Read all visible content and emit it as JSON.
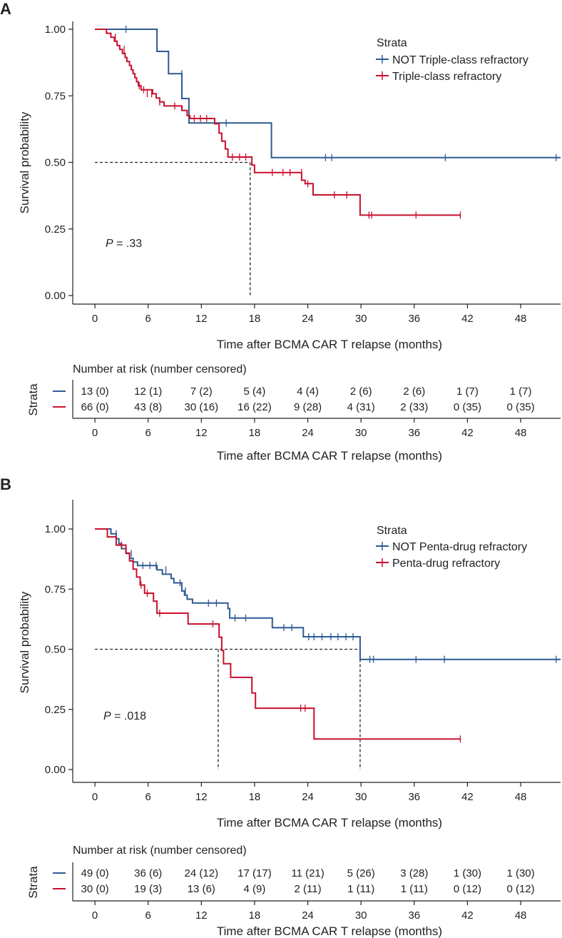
{
  "panels": [
    {
      "letter": "A",
      "pvalue_prefix": "P",
      "pvalue_text": " = .33",
      "legend_title": "Strata",
      "risk_title": "Number at risk (number censored)",
      "risk_strata_label": "Strata",
      "risk_xlabel": "Time after BCMA CAR T relapse (months)",
      "risk_table": [
        [
          "13 (0)",
          "12 (1)",
          "7 (2)",
          "5 (4)",
          "4 (4)",
          "2 (6)",
          "2 (6)",
          "1 (7)",
          "1 (7)"
        ],
        [
          "66 (0)",
          "43 (8)",
          "30 (16)",
          "16 (22)",
          "9 (28)",
          "4 (31)",
          "2 (33)",
          "0 (35)",
          "0 (35)"
        ]
      ],
      "median_lines": [
        {
          "x": 17.5,
          "y": 0.5
        }
      ]
    },
    {
      "letter": "B",
      "pvalue_prefix": "P",
      "pvalue_text": " = .018",
      "legend_title": "Strata",
      "risk_title": "Number at risk (number censored)",
      "risk_strata_label": "Strata",
      "risk_xlabel": "Time after BCMA CAR T relapse (months)",
      "risk_table": [
        [
          "49 (0)",
          "36 (6)",
          "24 (12)",
          "17 (17)",
          "11 (21)",
          "5 (26)",
          "3 (28)",
          "1 (30)",
          "1 (30)"
        ],
        [
          "30 (0)",
          "19 (3)",
          "13 (6)",
          "4 (9)",
          "2 (11)",
          "1 (11)",
          "1 (11)",
          "0 (12)",
          "0 (12)"
        ]
      ],
      "median_lines": [
        {
          "x": 13.9,
          "y": 0.5
        },
        {
          "x": 29.9,
          "y": 0.5
        }
      ]
    }
  ],
  "chart_data": [
    {
      "type": "line",
      "subtype": "kaplan-meier",
      "xlabel": "Time after BCMA CAR T relapse (months)",
      "ylabel": "Survival probability",
      "xlim": [
        -2.5,
        52.5
      ],
      "ylim": [
        -0.07,
        1.0
      ],
      "xticks": [
        0,
        6,
        12,
        18,
        24,
        30,
        36,
        42,
        48
      ],
      "yticks": [
        0.0,
        0.25,
        0.5,
        0.75,
        1.0
      ],
      "ytick_labels": [
        "0.00",
        "0.25",
        "0.50",
        "0.75",
        "1.00"
      ],
      "grid": false,
      "legend": "top-right",
      "series": [
        {
          "name": "NOT Triple-class refractory",
          "color": "#2d5a93",
          "steps": [
            [
              0,
              1.0
            ],
            [
              7.0,
              0.917
            ],
            [
              8.3,
              0.833
            ],
            [
              9.8,
              0.74
            ],
            [
              10.6,
              0.648
            ],
            [
              19.9,
              0.518
            ],
            [
              52.5,
              0.518
            ]
          ],
          "censor": [
            [
              3.5,
              1.0
            ],
            [
              9.8,
              0.833
            ],
            [
              14.8,
              0.648
            ],
            [
              26.0,
              0.518
            ],
            [
              26.7,
              0.518
            ],
            [
              39.5,
              0.518
            ],
            [
              52.0,
              0.518
            ]
          ]
        },
        {
          "name": "Triple-class refractory",
          "color": "#c8102e",
          "steps": [
            [
              0,
              1.0
            ],
            [
              1.3,
              0.985
            ],
            [
              1.8,
              0.97
            ],
            [
              2.2,
              0.955
            ],
            [
              2.5,
              0.939
            ],
            [
              2.8,
              0.924
            ],
            [
              3.1,
              0.909
            ],
            [
              3.4,
              0.894
            ],
            [
              3.6,
              0.879
            ],
            [
              3.9,
              0.864
            ],
            [
              4.1,
              0.848
            ],
            [
              4.3,
              0.833
            ],
            [
              4.5,
              0.818
            ],
            [
              4.7,
              0.803
            ],
            [
              4.9,
              0.788
            ],
            [
              5.2,
              0.773
            ],
            [
              6.5,
              0.758
            ],
            [
              6.9,
              0.742
            ],
            [
              7.3,
              0.727
            ],
            [
              7.8,
              0.712
            ],
            [
              9.8,
              0.695
            ],
            [
              10.4,
              0.676
            ],
            [
              10.7,
              0.665
            ],
            [
              13.5,
              0.645
            ],
            [
              14.0,
              0.61
            ],
            [
              14.3,
              0.58
            ],
            [
              14.7,
              0.55
            ],
            [
              15.0,
              0.52
            ],
            [
              17.7,
              0.49
            ],
            [
              18.0,
              0.462
            ],
            [
              23.3,
              0.433
            ],
            [
              23.7,
              0.42
            ],
            [
              24.6,
              0.378
            ],
            [
              29.9,
              0.302
            ],
            [
              41.2,
              0.302
            ]
          ],
          "censor": [
            [
              2.3,
              0.97
            ],
            [
              3.3,
              0.924
            ],
            [
              5.0,
              0.788
            ],
            [
              5.5,
              0.773
            ],
            [
              5.9,
              0.758
            ],
            [
              6.4,
              0.758
            ],
            [
              7.3,
              0.727
            ],
            [
              9.0,
              0.712
            ],
            [
              11.2,
              0.665
            ],
            [
              11.9,
              0.665
            ],
            [
              12.6,
              0.665
            ],
            [
              15.5,
              0.52
            ],
            [
              16.3,
              0.52
            ],
            [
              17.0,
              0.52
            ],
            [
              20.0,
              0.462
            ],
            [
              21.2,
              0.462
            ],
            [
              22.0,
              0.462
            ],
            [
              23.3,
              0.462
            ],
            [
              24.0,
              0.42
            ],
            [
              27.0,
              0.378
            ],
            [
              28.4,
              0.378
            ],
            [
              30.9,
              0.302
            ],
            [
              31.2,
              0.302
            ],
            [
              36.2,
              0.302
            ],
            [
              41.2,
              0.302
            ]
          ]
        }
      ]
    },
    {
      "type": "line",
      "subtype": "kaplan-meier",
      "xlabel": "Time after BCMA CAR T relapse (months)",
      "ylabel": "Survival probability",
      "xlim": [
        -2.5,
        52.5
      ],
      "ylim": [
        -0.07,
        1.0
      ],
      "xticks": [
        0,
        6,
        12,
        18,
        24,
        30,
        36,
        42,
        48
      ],
      "yticks": [
        0.0,
        0.25,
        0.5,
        0.75,
        1.0
      ],
      "ytick_labels": [
        "0.00",
        "0.25",
        "0.50",
        "0.75",
        "1.00"
      ],
      "grid": false,
      "legend": "top-right",
      "series": [
        {
          "name": "NOT Penta-drug refractory",
          "color": "#2d5a93",
          "steps": [
            [
              0,
              1.0
            ],
            [
              1.8,
              0.98
            ],
            [
              2.4,
              0.959
            ],
            [
              2.7,
              0.939
            ],
            [
              3.0,
              0.918
            ],
            [
              3.5,
              0.898
            ],
            [
              3.9,
              0.878
            ],
            [
              4.3,
              0.863
            ],
            [
              4.8,
              0.848
            ],
            [
              7.0,
              0.83
            ],
            [
              7.6,
              0.812
            ],
            [
              8.6,
              0.794
            ],
            [
              8.9,
              0.776
            ],
            [
              9.8,
              0.742
            ],
            [
              10.1,
              0.725
            ],
            [
              10.4,
              0.708
            ],
            [
              11.0,
              0.692
            ],
            [
              15.0,
              0.669
            ],
            [
              15.2,
              0.63
            ],
            [
              20.0,
              0.59
            ],
            [
              23.5,
              0.552
            ],
            [
              29.9,
              0.458
            ],
            [
              52.5,
              0.458
            ]
          ],
          "censor": [
            [
              2.4,
              0.98
            ],
            [
              4.1,
              0.898
            ],
            [
              5.4,
              0.848
            ],
            [
              6.2,
              0.848
            ],
            [
              6.9,
              0.848
            ],
            [
              8.0,
              0.83
            ],
            [
              9.6,
              0.776
            ],
            [
              10.2,
              0.742
            ],
            [
              12.8,
              0.692
            ],
            [
              13.7,
              0.692
            ],
            [
              15.8,
              0.63
            ],
            [
              17.0,
              0.63
            ],
            [
              21.3,
              0.59
            ],
            [
              22.2,
              0.59
            ],
            [
              24.1,
              0.552
            ],
            [
              24.7,
              0.552
            ],
            [
              25.6,
              0.552
            ],
            [
              26.6,
              0.552
            ],
            [
              27.4,
              0.552
            ],
            [
              28.3,
              0.552
            ],
            [
              29.1,
              0.552
            ],
            [
              31.0,
              0.458
            ],
            [
              31.4,
              0.458
            ],
            [
              36.2,
              0.458
            ],
            [
              39.4,
              0.458
            ],
            [
              52.0,
              0.458
            ]
          ]
        },
        {
          "name": "Penta-drug refractory",
          "color": "#c8102e",
          "steps": [
            [
              0,
              1.0
            ],
            [
              1.4,
              0.967
            ],
            [
              2.4,
              0.933
            ],
            [
              3.5,
              0.9
            ],
            [
              3.9,
              0.867
            ],
            [
              4.3,
              0.833
            ],
            [
              4.7,
              0.8
            ],
            [
              5.1,
              0.767
            ],
            [
              5.6,
              0.733
            ],
            [
              6.6,
              0.7
            ],
            [
              7.0,
              0.65
            ],
            [
              10.5,
              0.605
            ],
            [
              14.0,
              0.55
            ],
            [
              14.3,
              0.495
            ],
            [
              14.5,
              0.44
            ],
            [
              15.3,
              0.383
            ],
            [
              17.7,
              0.318
            ],
            [
              18.1,
              0.255
            ],
            [
              24.7,
              0.127
            ],
            [
              41.2,
              0.127
            ]
          ],
          "censor": [
            [
              3.0,
              0.933
            ],
            [
              5.2,
              0.767
            ],
            [
              5.9,
              0.733
            ],
            [
              7.3,
              0.65
            ],
            [
              13.3,
              0.605
            ],
            [
              23.2,
              0.255
            ],
            [
              23.7,
              0.255
            ],
            [
              41.2,
              0.127
            ]
          ]
        }
      ]
    }
  ]
}
